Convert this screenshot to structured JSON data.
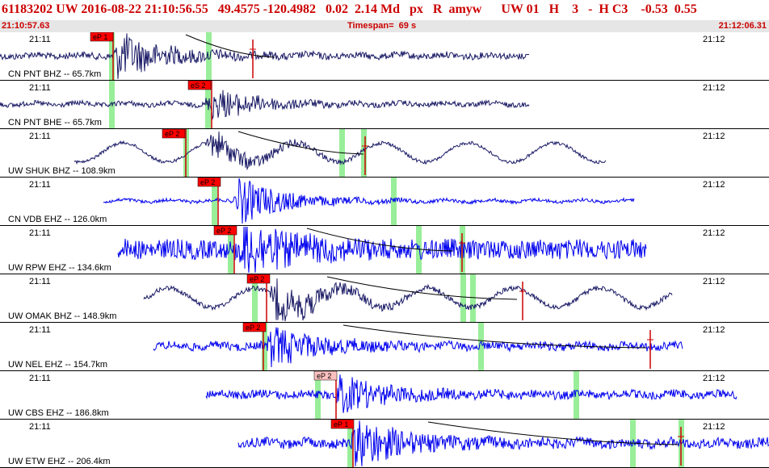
{
  "header": {
    "title": "61183202 UW 2016-08-22 21:10:56.55   49.4575 -120.4982   0.02  2.14 Md   px   R  amyw      UW 01   H    3   -  H C3    -0.53  0.55",
    "start_time": "21:10:57.63",
    "timespan": "Timespan=  69 s",
    "end_time": "21:12:06.31"
  },
  "colors": {
    "title": "#cc0000",
    "pick_box": "#ff0000",
    "pick_box_light": "#ffc0c0",
    "pick_line": "#cc0000",
    "green_marker": "#99ee99",
    "trace_dark": "#1a1a66",
    "trace_blue": "#0000ee",
    "divider": "#000000"
  },
  "traces": [
    {
      "label": "CN PNT BHZ -- 65.7km",
      "time_left": "21:11",
      "time_right": "21:12",
      "pick": "eP 1",
      "pick_style": "red",
      "color": "dark"
    },
    {
      "label": "CN PNT BHE -- 65.7km",
      "time_left": "21:11",
      "time_right": "21:12",
      "pick": "eS 2",
      "pick_style": "red",
      "color": "dark"
    },
    {
      "label": "UW SHUK BHZ -- 108.9km",
      "time_left": "21:11",
      "time_right": "21:12",
      "pick": "eP 2",
      "pick_style": "red",
      "color": "dark"
    },
    {
      "label": "CN VDB EHZ -- 126.0km",
      "time_left": "21:11",
      "time_right": "21:12",
      "pick": "eP 2",
      "pick_style": "red",
      "color": "blue"
    },
    {
      "label": "UW RPW EHZ -- 134.6km",
      "time_left": "21:11",
      "time_right": "21:12",
      "pick": "eP 2",
      "pick_style": "red",
      "color": "blue"
    },
    {
      "label": "UW OMAK BHZ -- 148.9km",
      "time_left": "21:11",
      "time_right": "21:12",
      "pick": "eP 2",
      "pick_style": "red",
      "color": "dark"
    },
    {
      "label": "UW NEL EHZ -- 154.7km",
      "time_left": "21:11",
      "time_right": "21:12",
      "pick": "eP 2",
      "pick_style": "red",
      "color": "blue"
    },
    {
      "label": "UW CBS EHZ -- 186.8km",
      "time_left": "21:11",
      "time_right": "21:12",
      "pick": "eP 2",
      "pick_style": "light",
      "color": "blue"
    },
    {
      "label": "UW ETW EHZ -- 206.4km",
      "time_left": "21:11",
      "time_right": "21:12",
      "pick": "eP 1",
      "pick_style": "red",
      "color": "blue"
    }
  ]
}
